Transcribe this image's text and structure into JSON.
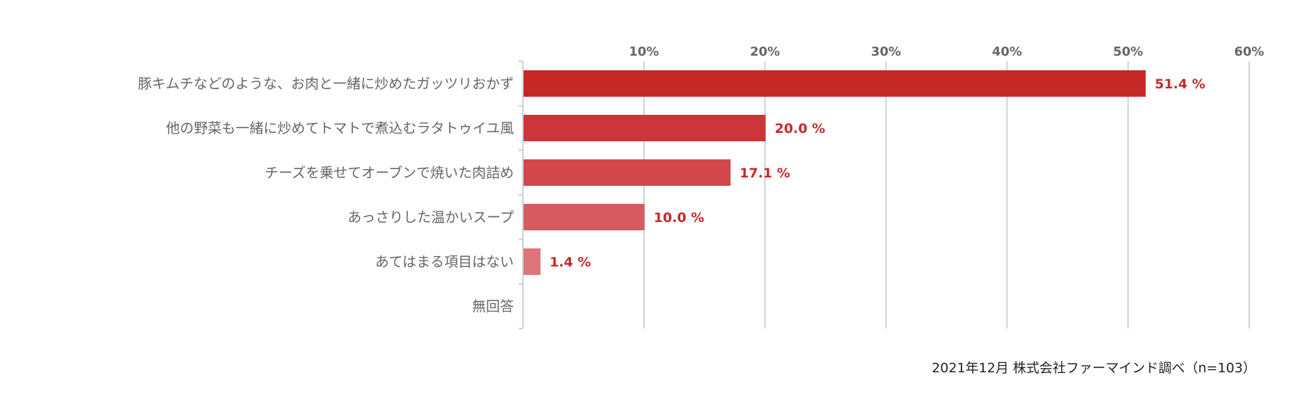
{
  "chart_data": {
    "type": "bar",
    "orientation": "horizontal",
    "categories": [
      "豚キムチなどのような、お肉と一緒に炒めたガッツリおかず",
      "他の野菜も一緒に炒めてトマトで煮込むラタトゥイユ風",
      "チーズを乗せてオーブンで焼いた肉詰め",
      "あっさりした温かいスープ",
      "あてはまる項目はない",
      "無回答"
    ],
    "values": [
      51.4,
      20.0,
      17.1,
      10.0,
      1.4,
      null
    ],
    "value_labels": [
      "51.4 %",
      "20.0 %",
      "17.1 %",
      "10.0 %",
      "1.4 %",
      ""
    ],
    "bar_colors": [
      "#c62828",
      "#cc353a",
      "#d1474b",
      "#d65b60",
      "#dc7479",
      "#e08a8e"
    ],
    "xlim": [
      0,
      60
    ],
    "x_ticks": [
      "10%",
      "20%",
      "30%",
      "40%",
      "50%",
      "60%"
    ],
    "x_tick_values": [
      10,
      20,
      30,
      40,
      50,
      60
    ],
    "x_axis_position": "top",
    "grid": true,
    "value_label_color": "#c62828",
    "source_note": "2021年12月 株式会社ファーマインド調べ（n=103）"
  }
}
